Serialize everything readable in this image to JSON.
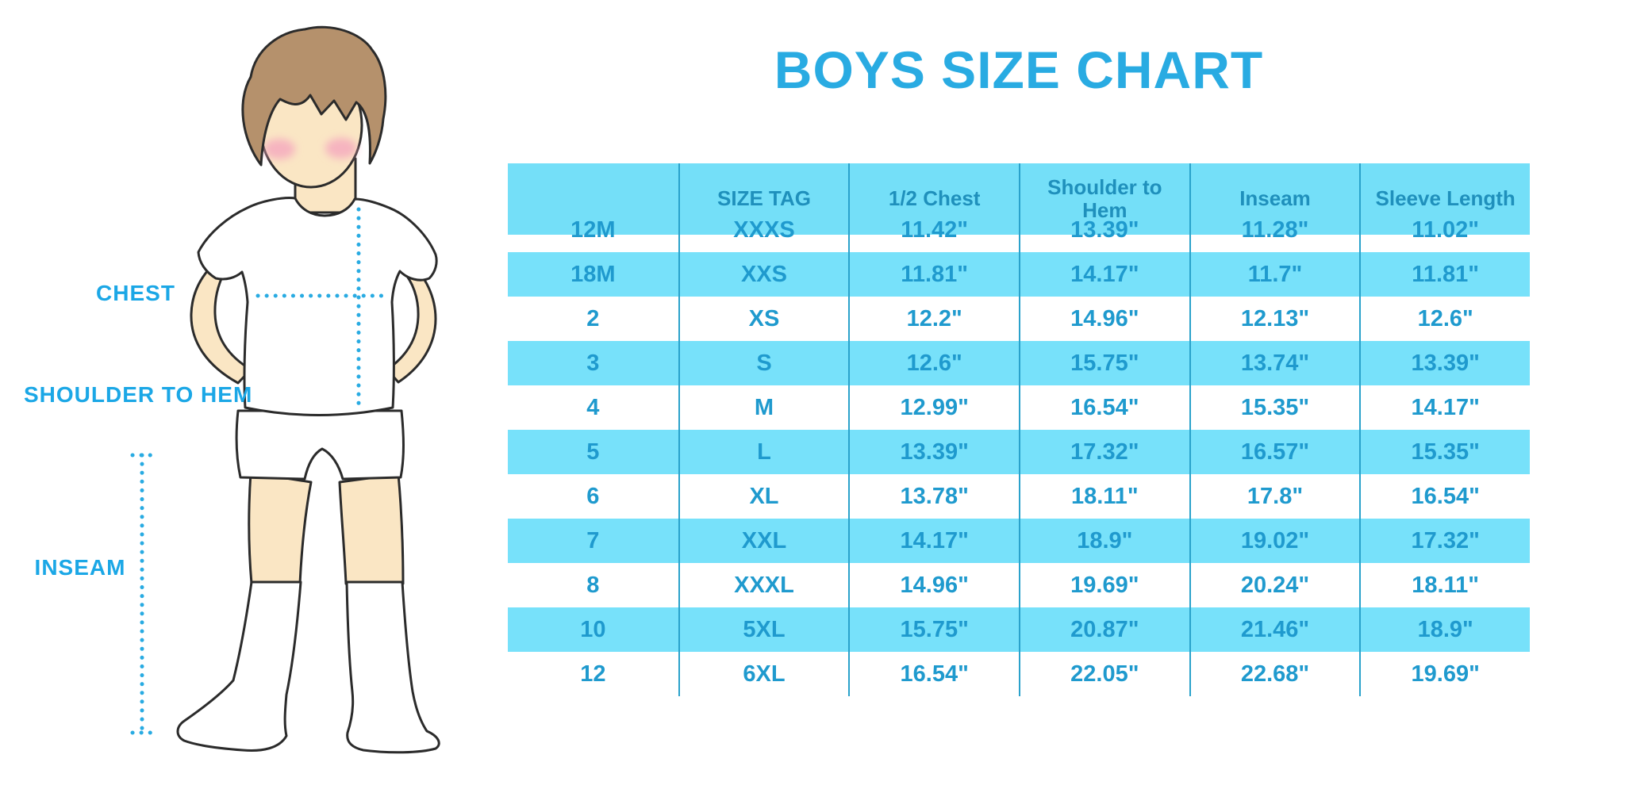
{
  "title": "BOYS SIZE CHART",
  "measurement_labels": {
    "chest": "CHEST",
    "shoulder_to_hem": "SHOULDER TO HEM",
    "inseam": "INSEAM"
  },
  "colors": {
    "title_blue": "#29ABE2",
    "label_blue": "#1BA7E6",
    "table_stripe": "#77E1FA",
    "table_header_bg": "#74DFF8",
    "header_text": "#1F90BC",
    "body_text": "#1F9ACE",
    "divider": "#2AA2CB",
    "dotted_line": "#29ABE2",
    "skin": "#FAE6C4",
    "hair": "#B5916C",
    "cheek": "#F5A8BE",
    "outline": "#2B2B2B"
  },
  "chart_data": {
    "type": "table",
    "title": "BOYS SIZE CHART",
    "columns": [
      "",
      "SIZE TAG",
      "1/2 Chest",
      "Shoulder to Hem",
      "Inseam",
      "Sleeve Length"
    ],
    "rows": [
      [
        "12M",
        "XXXS",
        "11.42\"",
        "13.39\"",
        "11.28\"",
        "11.02\""
      ],
      [
        "18M",
        "XXS",
        "11.81\"",
        "14.17\"",
        "11.7\"",
        "11.81\""
      ],
      [
        "2",
        "XS",
        "12.2\"",
        "14.96\"",
        "12.13\"",
        "12.6\""
      ],
      [
        "3",
        "S",
        "12.6\"",
        "15.75\"",
        "13.74\"",
        "13.39\""
      ],
      [
        "4",
        "M",
        "12.99\"",
        "16.54\"",
        "15.35\"",
        "14.17\""
      ],
      [
        "5",
        "L",
        "13.39\"",
        "17.32\"",
        "16.57\"",
        "15.35\""
      ],
      [
        "6",
        "XL",
        "13.78\"",
        "18.11\"",
        "17.8\"",
        "16.54\""
      ],
      [
        "7",
        "XXL",
        "14.17\"",
        "18.9\"",
        "19.02\"",
        "17.32\""
      ],
      [
        "8",
        "XXXL",
        "14.96\"",
        "19.69\"",
        "20.24\"",
        "18.11\""
      ],
      [
        "10",
        "5XL",
        "15.75\"",
        "20.87\"",
        "21.46\"",
        "18.9\""
      ],
      [
        "12",
        "6XL",
        "16.54\"",
        "22.05\"",
        "22.68\"",
        "19.69\""
      ]
    ]
  }
}
